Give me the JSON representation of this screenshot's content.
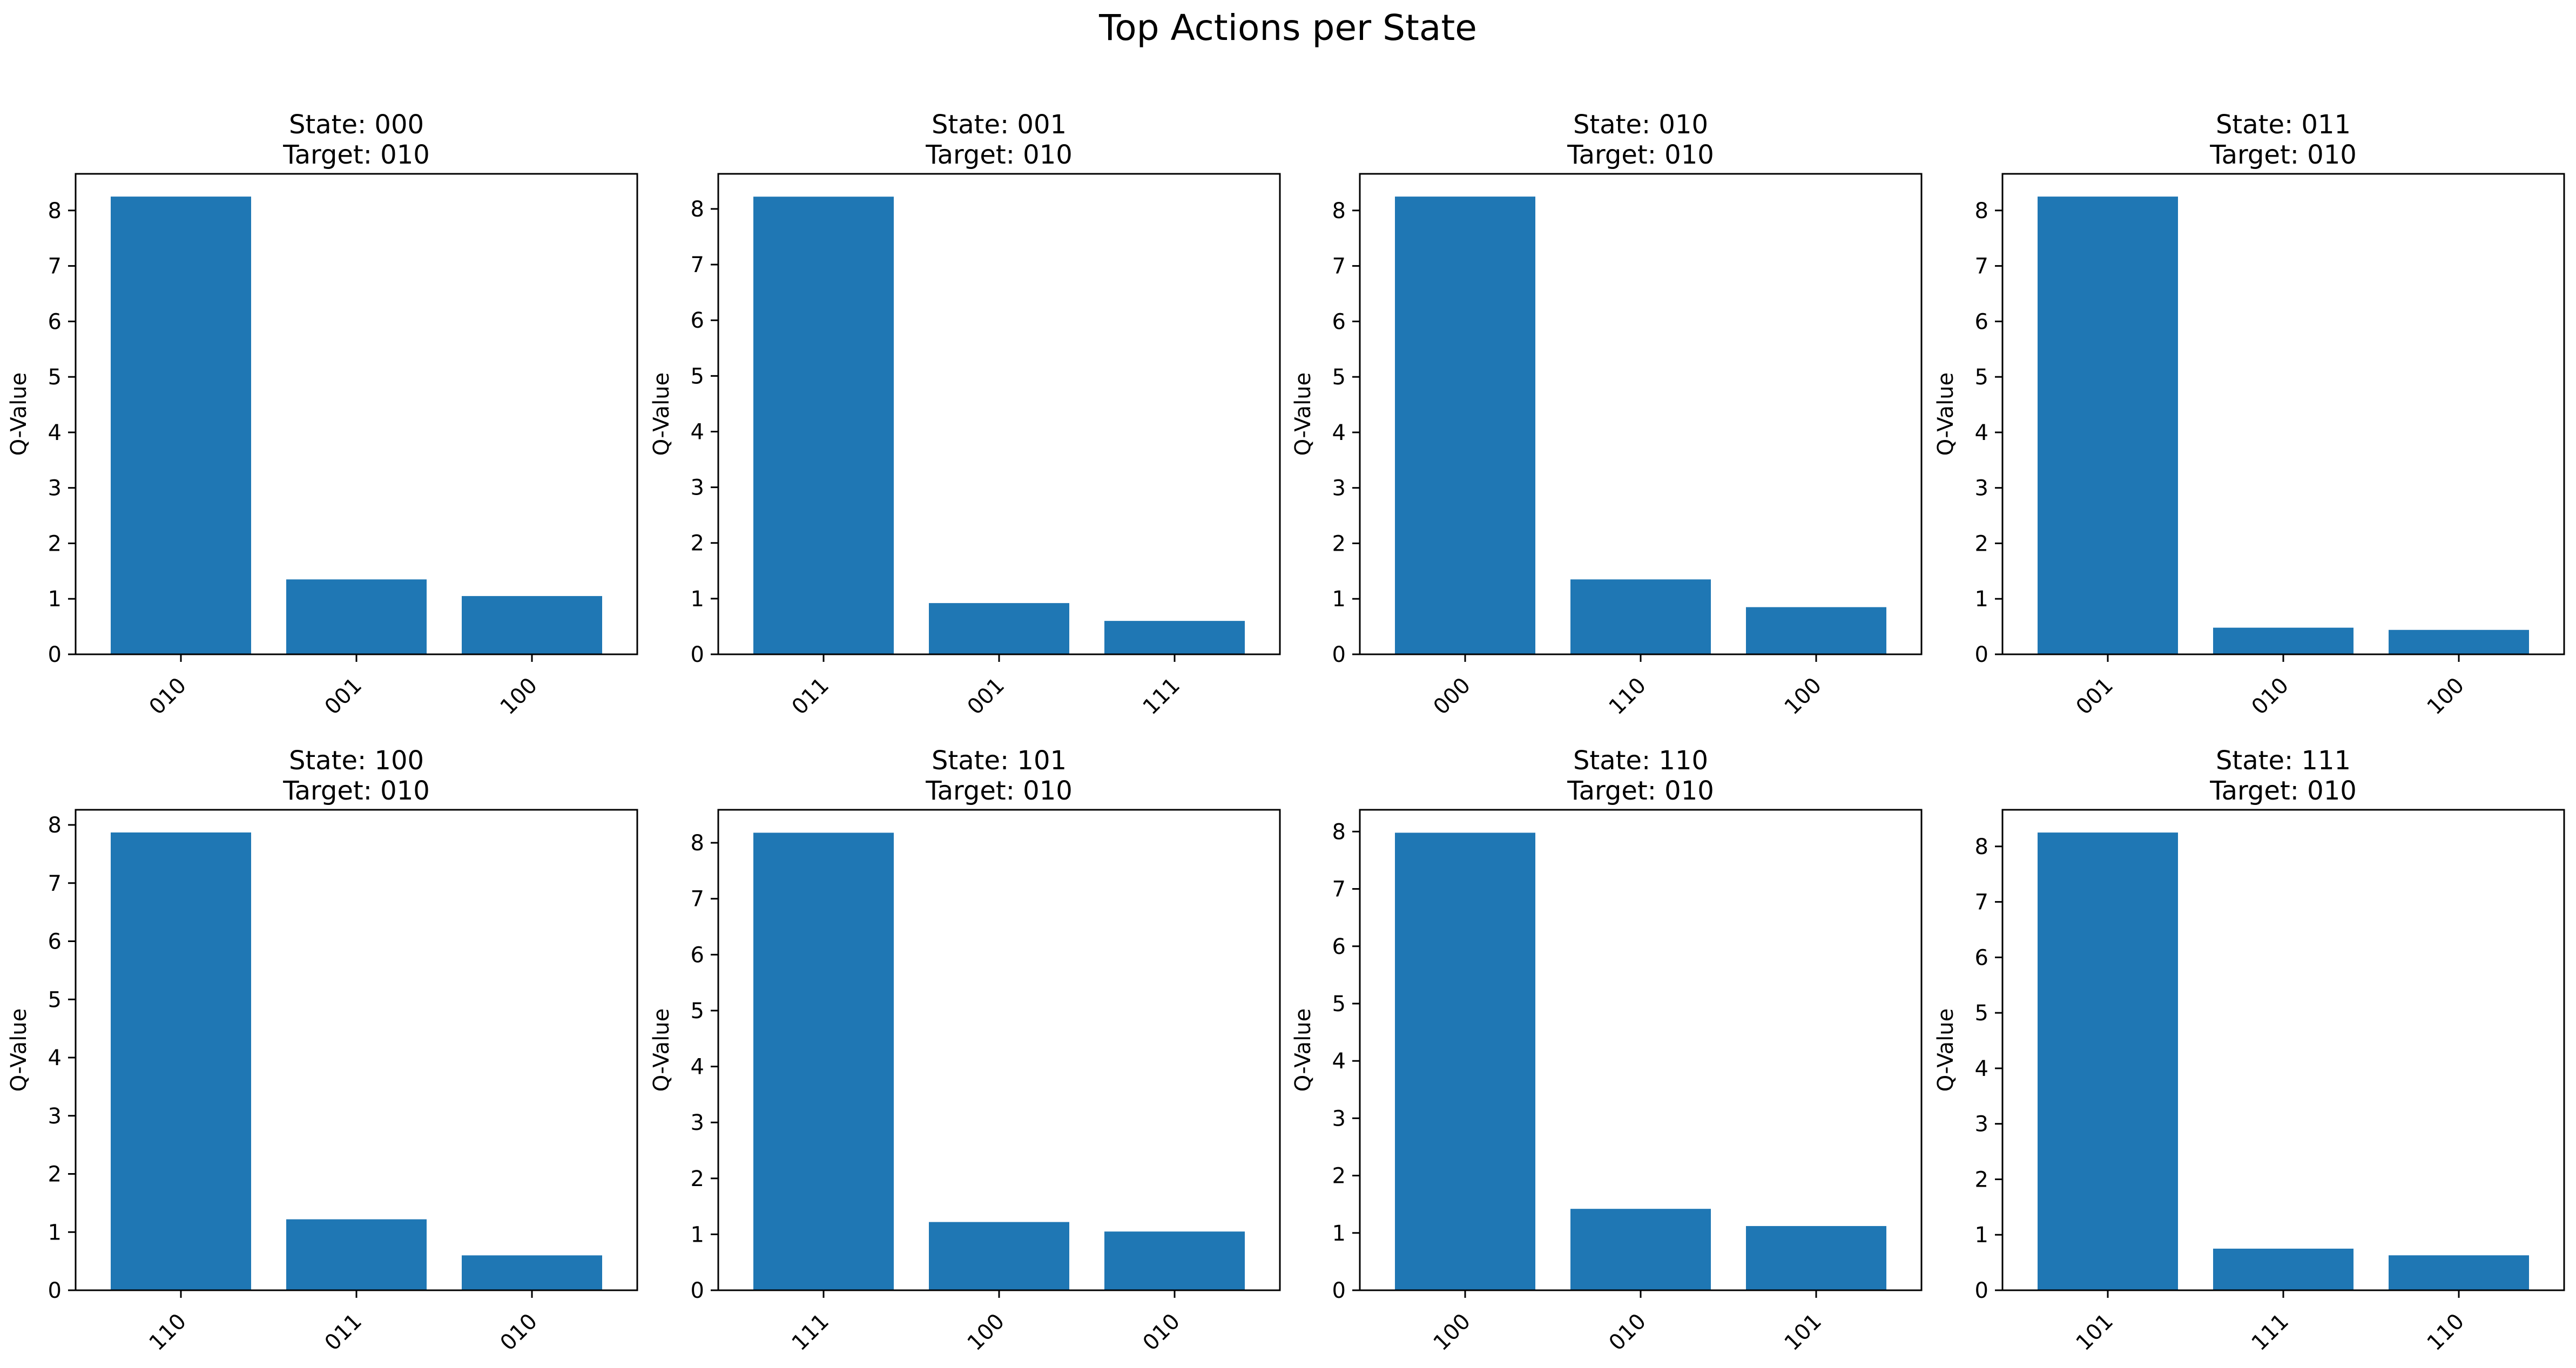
{
  "figure": {
    "title": "Top Actions per State"
  },
  "colors": {
    "bar": "#1f77b4",
    "axis": "#000000",
    "background": "#ffffff"
  },
  "chart_data": [
    {
      "type": "bar",
      "title": "State: 000\nTarget: 010",
      "title_lines": [
        "State: 000",
        "Target: 010"
      ],
      "xlabel": "",
      "ylabel": "Q-Value",
      "categories": [
        "010",
        "001",
        "100"
      ],
      "values": [
        8.25,
        1.35,
        1.05
      ],
      "ylim": [
        0,
        8.66
      ],
      "yticks": [
        0,
        1,
        2,
        3,
        4,
        5,
        6,
        7,
        8
      ],
      "grid": false
    },
    {
      "type": "bar",
      "title": "State: 001\nTarget: 010",
      "title_lines": [
        "State: 001",
        "Target: 010"
      ],
      "xlabel": "",
      "ylabel": "Q-Value",
      "categories": [
        "011",
        "001",
        "111"
      ],
      "values": [
        8.22,
        0.92,
        0.6
      ],
      "ylim": [
        0,
        8.63
      ],
      "yticks": [
        0,
        1,
        2,
        3,
        4,
        5,
        6,
        7,
        8
      ],
      "grid": false
    },
    {
      "type": "bar",
      "title": "State: 010\nTarget: 010",
      "title_lines": [
        "State: 010",
        "Target: 010"
      ],
      "xlabel": "",
      "ylabel": "Q-Value",
      "categories": [
        "000",
        "110",
        "100"
      ],
      "values": [
        8.25,
        1.35,
        0.85
      ],
      "ylim": [
        0,
        8.66
      ],
      "yticks": [
        0,
        1,
        2,
        3,
        4,
        5,
        6,
        7,
        8
      ],
      "grid": false
    },
    {
      "type": "bar",
      "title": "State: 011\nTarget: 010",
      "title_lines": [
        "State: 011",
        "Target: 010"
      ],
      "xlabel": "",
      "ylabel": "Q-Value",
      "categories": [
        "001",
        "010",
        "100"
      ],
      "values": [
        8.25,
        0.48,
        0.44
      ],
      "ylim": [
        0,
        8.66
      ],
      "yticks": [
        0,
        1,
        2,
        3,
        4,
        5,
        6,
        7,
        8
      ],
      "grid": false
    },
    {
      "type": "bar",
      "title": "State: 100\nTarget: 010",
      "title_lines": [
        "State: 100",
        "Target: 010"
      ],
      "xlabel": "",
      "ylabel": "Q-Value",
      "categories": [
        "110",
        "011",
        "010"
      ],
      "values": [
        7.87,
        1.22,
        0.6
      ],
      "ylim": [
        0,
        8.26
      ],
      "yticks": [
        0,
        1,
        2,
        3,
        4,
        5,
        6,
        7,
        8
      ],
      "grid": false
    },
    {
      "type": "bar",
      "title": "State: 101\nTarget: 010",
      "title_lines": [
        "State: 101",
        "Target: 010"
      ],
      "xlabel": "",
      "ylabel": "Q-Value",
      "categories": [
        "111",
        "100",
        "010"
      ],
      "values": [
        8.18,
        1.22,
        1.05
      ],
      "ylim": [
        0,
        8.59
      ],
      "yticks": [
        0,
        1,
        2,
        3,
        4,
        5,
        6,
        7,
        8
      ],
      "grid": false
    },
    {
      "type": "bar",
      "title": "State: 110\nTarget: 010",
      "title_lines": [
        "State: 110",
        "Target: 010"
      ],
      "xlabel": "",
      "ylabel": "Q-Value",
      "categories": [
        "100",
        "010",
        "101"
      ],
      "values": [
        7.98,
        1.42,
        1.12
      ],
      "ylim": [
        0,
        8.38
      ],
      "yticks": [
        0,
        1,
        2,
        3,
        4,
        5,
        6,
        7,
        8
      ],
      "grid": false
    },
    {
      "type": "bar",
      "title": "State: 111\nTarget: 010",
      "title_lines": [
        "State: 111",
        "Target: 010"
      ],
      "xlabel": "",
      "ylabel": "Q-Value",
      "categories": [
        "101",
        "111",
        "110"
      ],
      "values": [
        8.25,
        0.75,
        0.63
      ],
      "ylim": [
        0,
        8.66
      ],
      "yticks": [
        0,
        1,
        2,
        3,
        4,
        5,
        6,
        7,
        8
      ],
      "grid": false
    }
  ]
}
